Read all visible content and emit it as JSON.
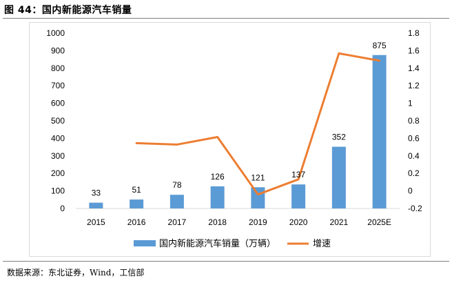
{
  "figure": {
    "title": "图 44：国内新能源汽车销量",
    "source": "数据来源：东北证券，Wind，工信部"
  },
  "chart_data": {
    "type": "bar",
    "categories": [
      "2015",
      "2016",
      "2017",
      "2018",
      "2019",
      "2020",
      "2021",
      "2025E"
    ],
    "series": [
      {
        "name": "国内新能源汽车销量（万辆）",
        "type": "bar",
        "axis": "left",
        "values": [
          33,
          51,
          78,
          126,
          121,
          137,
          352,
          875
        ],
        "color": "#5b9bd5"
      },
      {
        "name": "增速",
        "type": "line",
        "axis": "right",
        "values": [
          null,
          0.545,
          0.529,
          0.615,
          -0.04,
          0.132,
          1.569,
          1.486
        ],
        "color": "#ed7d31"
      }
    ],
    "y_left": {
      "min": 0,
      "max": 1000,
      "step": 100,
      "tick_labels": [
        "0",
        "100",
        "200",
        "300",
        "400",
        "500",
        "600",
        "700",
        "800",
        "900",
        "1000"
      ]
    },
    "y_right": {
      "min": -0.2,
      "max": 1.8,
      "step": 0.2,
      "tick_labels": [
        "-0.2",
        "0",
        "0.2",
        "0.4",
        "0.6",
        "0.8",
        "1",
        "1.2",
        "1.4",
        "1.6",
        "1.8"
      ]
    },
    "data_labels": [
      "33",
      "51",
      "78",
      "126",
      "121",
      "137",
      "352",
      "875"
    ],
    "grid": false,
    "legend_position": "bottom"
  }
}
